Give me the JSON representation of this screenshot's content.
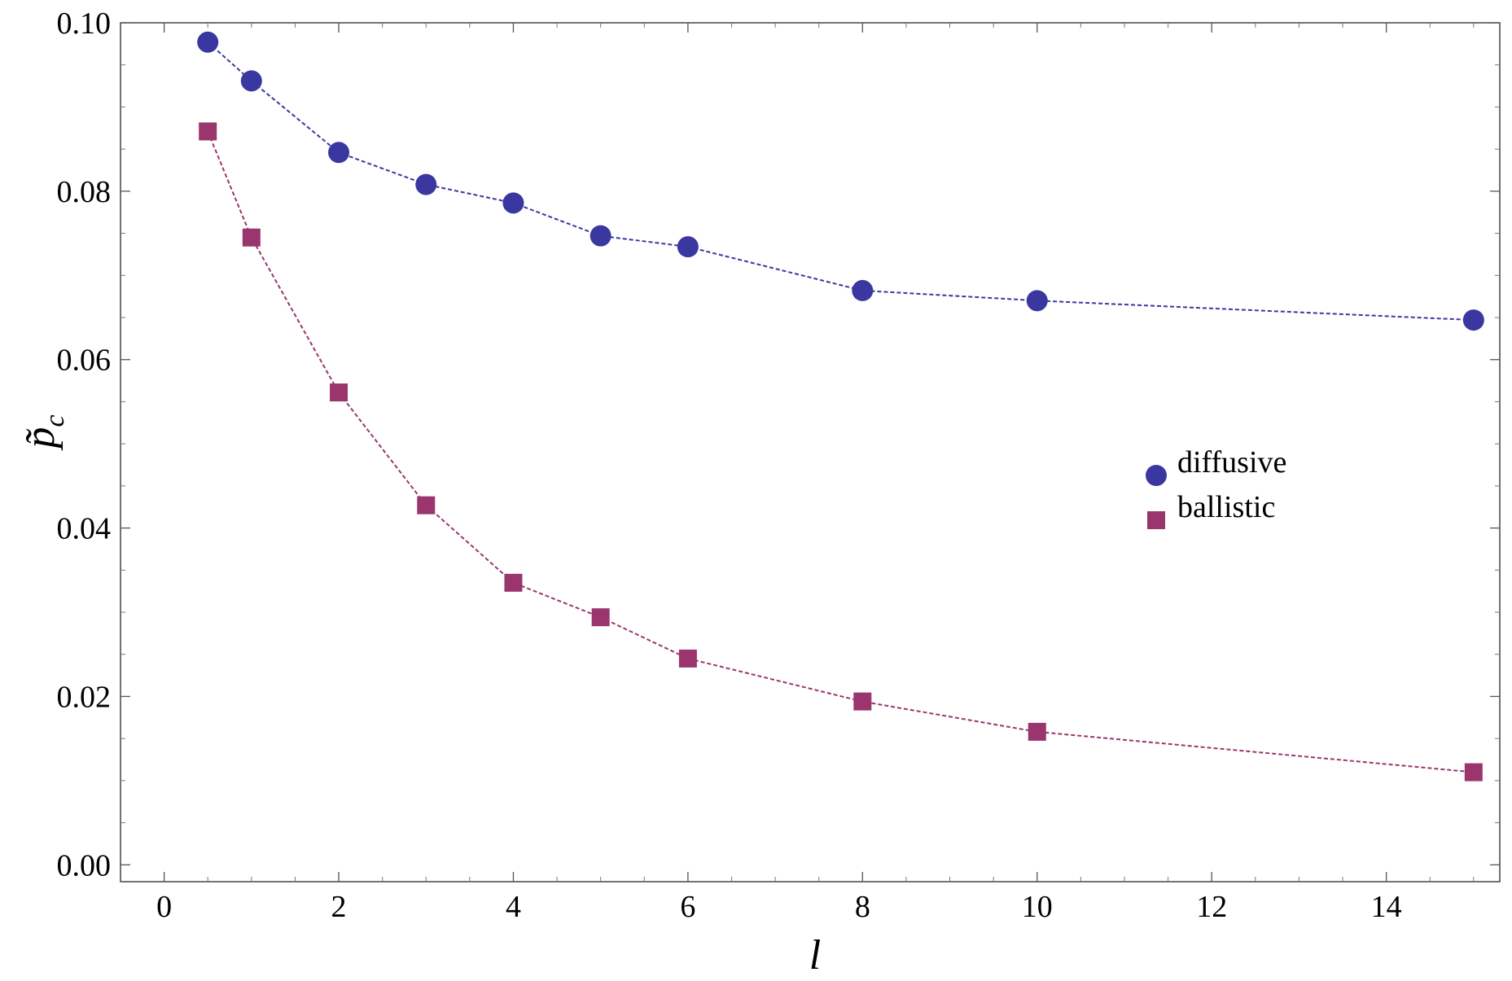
{
  "chart_data": {
    "type": "scatter",
    "xlabel": "l",
    "ylabel": "p̃",
    "ylabel_sub": "c",
    "xlim": [
      -0.5,
      15.3
    ],
    "ylim": [
      -0.002,
      0.1
    ],
    "xticks": [
      0,
      2,
      4,
      6,
      8,
      10,
      12,
      14
    ],
    "xtick_labels": [
      "0",
      "2",
      "4",
      "6",
      "8",
      "10",
      "12",
      "14"
    ],
    "yticks": [
      0.0,
      0.02,
      0.04,
      0.06,
      0.08,
      0.1
    ],
    "ytick_labels": [
      "0.00",
      "0.02",
      "0.04",
      "0.06",
      "0.08",
      "0.10"
    ],
    "grid": false,
    "legend_position": "right-middle",
    "x": [
      0.5,
      1,
      2,
      3,
      4,
      5,
      6,
      8,
      10,
      15
    ],
    "series": [
      {
        "name": "diffusive",
        "marker": "circle",
        "color": "#3a37a0",
        "line_style": "dashed",
        "values": [
          0.0977,
          0.0931,
          0.0846,
          0.0808,
          0.0786,
          0.0747,
          0.0734,
          0.0682,
          0.067,
          0.0647
        ]
      },
      {
        "name": "ballistic",
        "marker": "square",
        "color": "#9a356d",
        "line_style": "dashed",
        "values": [
          0.0871,
          0.0745,
          0.0561,
          0.0427,
          0.0335,
          0.0294,
          0.0245,
          0.0194,
          0.0158,
          0.011
        ]
      }
    ]
  }
}
